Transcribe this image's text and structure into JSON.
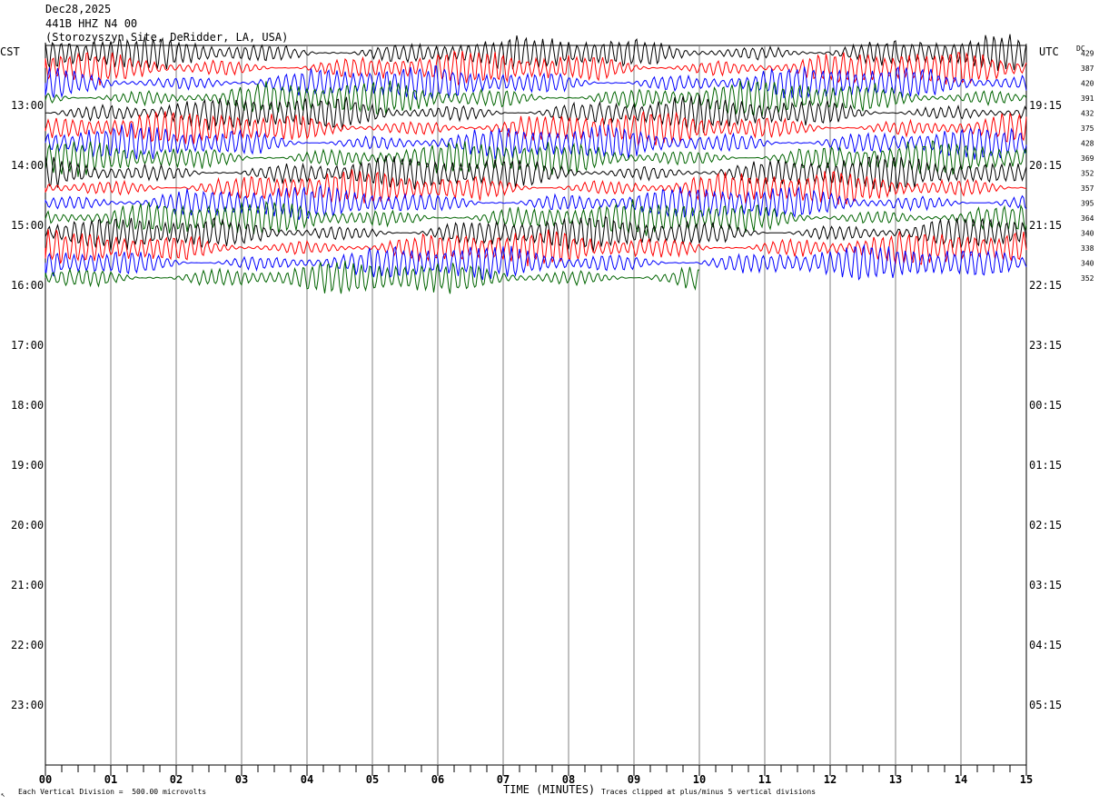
{
  "header": {
    "date": "Dec28,2025",
    "channel": "441B HHZ N4 00",
    "site": "(Storozyszyn Site, DeRidder, LA, USA)"
  },
  "labels": {
    "left_tz": "CST",
    "right_tz": "UTC",
    "dc_heading": "DC"
  },
  "footer": {
    "scale_note": "Each Vertical Division =  500.00 microvolts",
    "xlabel": "TIME (MINUTES)",
    "clip_note": "Traces clipped at plus/minus 5 vertical divisions",
    "corner_mark": "↖"
  },
  "colors": {
    "trace_cycle": [
      "#000000",
      "#ff0000",
      "#0000ff",
      "#006400"
    ],
    "grid": "#808080"
  },
  "chart_data": {
    "type": "line",
    "title": "441B HHZ N4 00",
    "xlabel": "TIME (MINUTES)",
    "xlim": [
      0,
      15
    ],
    "x_ticks": [
      "00",
      "01",
      "02",
      "03",
      "04",
      "05",
      "06",
      "07",
      "08",
      "09",
      "10",
      "11",
      "12",
      "13",
      "14",
      "15"
    ],
    "left_time_labels": [
      "13:00",
      "14:00",
      "15:00",
      "16:00",
      "17:00",
      "18:00",
      "19:00",
      "20:00",
      "21:00",
      "22:00",
      "23:00"
    ],
    "right_time_labels": [
      "19:15",
      "20:15",
      "21:15",
      "22:15",
      "23:15",
      "00:15",
      "01:15",
      "02:15",
      "03:15",
      "04:15",
      "05:15"
    ],
    "rows_per_hour": 4,
    "total_rows": 48,
    "dc_offsets": [
      429,
      387,
      420,
      391,
      432,
      375,
      428,
      369,
      352,
      357,
      395,
      364,
      340,
      338,
      340,
      352
    ],
    "trace_rows_drawn": 16,
    "last_trace_end_minute": 10.0
  }
}
